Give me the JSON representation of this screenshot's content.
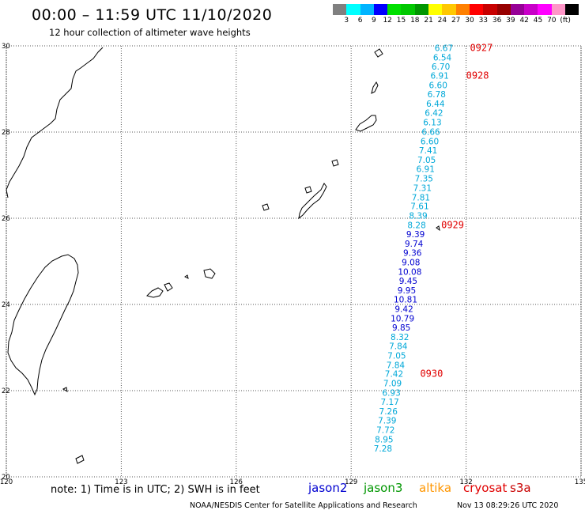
{
  "header": {
    "title": "00:00 – 11:59 UTC 11/10/2020",
    "subtitle": "12 hour collection of altimeter wave heights"
  },
  "legend": {
    "colors": [
      "#808080",
      "#00ffff",
      "#00b4ff",
      "#0000ff",
      "#00e000",
      "#00c800",
      "#009600",
      "#ffff00",
      "#ffc800",
      "#ff8000",
      "#ff0000",
      "#c80000",
      "#960000",
      "#960096",
      "#c800c8",
      "#ff00ff",
      "#ff96c8",
      "#000000"
    ],
    "labels": [
      "3",
      "6",
      "9",
      "12",
      "15",
      "18",
      "21",
      "24",
      "27",
      "30",
      "33",
      "36",
      "39",
      "42",
      "45",
      "70",
      "(ft)"
    ]
  },
  "map": {
    "lon_range": [
      120,
      135
    ],
    "lat_range": [
      20,
      30
    ],
    "lon_ticks": [
      "120",
      "123",
      "126",
      "129",
      "132",
      "135"
    ],
    "lat_ticks": [
      "20",
      "22",
      "24",
      "26",
      "28",
      "30"
    ],
    "grid": "dotted"
  },
  "track": {
    "colors": {
      "jason2": "#0000d0",
      "cryosat_light": "#00a8d8"
    },
    "points": [
      {
        "lat": 29.95,
        "lon": 131.42,
        "value": "6.67",
        "sat": "cryosat_light"
      },
      {
        "lat": 29.73,
        "lon": 131.38,
        "value": "6.54",
        "sat": "cryosat_light"
      },
      {
        "lat": 29.52,
        "lon": 131.34,
        "value": "6.70",
        "sat": "cryosat_light"
      },
      {
        "lat": 29.31,
        "lon": 131.31,
        "value": "6.91",
        "sat": "cryosat_light"
      },
      {
        "lat": 29.09,
        "lon": 131.27,
        "value": "6.60",
        "sat": "cryosat_light"
      },
      {
        "lat": 28.88,
        "lon": 131.23,
        "value": "6.78",
        "sat": "cryosat_light"
      },
      {
        "lat": 28.66,
        "lon": 131.2,
        "value": "6.44",
        "sat": "cryosat_light"
      },
      {
        "lat": 28.45,
        "lon": 131.16,
        "value": "6.42",
        "sat": "cryosat_light"
      },
      {
        "lat": 28.23,
        "lon": 131.12,
        "value": "6.13",
        "sat": "cryosat_light"
      },
      {
        "lat": 28.01,
        "lon": 131.08,
        "value": "6.66",
        "sat": "cryosat_light"
      },
      {
        "lat": 27.79,
        "lon": 131.05,
        "value": "6.60",
        "sat": "cryosat_light"
      },
      {
        "lat": 27.58,
        "lon": 131.01,
        "value": "7.41",
        "sat": "cryosat_light"
      },
      {
        "lat": 27.36,
        "lon": 130.97,
        "value": "7.05",
        "sat": "cryosat_light"
      },
      {
        "lat": 27.15,
        "lon": 130.94,
        "value": "6.91",
        "sat": "cryosat_light"
      },
      {
        "lat": 26.93,
        "lon": 130.9,
        "value": "7.35",
        "sat": "cryosat_light"
      },
      {
        "lat": 26.71,
        "lon": 130.86,
        "value": "7.31",
        "sat": "cryosat_light"
      },
      {
        "lat": 26.49,
        "lon": 130.82,
        "value": "7.81",
        "sat": "cryosat_light"
      },
      {
        "lat": 26.28,
        "lon": 130.79,
        "value": "7.61",
        "sat": "cryosat_light"
      },
      {
        "lat": 26.06,
        "lon": 130.75,
        "value": "8.39",
        "sat": "cryosat_light"
      },
      {
        "lat": 25.84,
        "lon": 130.71,
        "value": "8.28",
        "sat": "cryosat_light"
      },
      {
        "lat": 25.63,
        "lon": 130.68,
        "value": "9.39",
        "sat": "jason2"
      },
      {
        "lat": 25.41,
        "lon": 130.64,
        "value": "9.74",
        "sat": "jason2"
      },
      {
        "lat": 25.2,
        "lon": 130.6,
        "value": "9.36",
        "sat": "jason2"
      },
      {
        "lat": 24.98,
        "lon": 130.56,
        "value": "9.08",
        "sat": "jason2"
      },
      {
        "lat": 24.76,
        "lon": 130.53,
        "value": "10.08",
        "sat": "jason2"
      },
      {
        "lat": 24.55,
        "lon": 130.49,
        "value": "9.45",
        "sat": "jason2"
      },
      {
        "lat": 24.33,
        "lon": 130.45,
        "value": "9.95",
        "sat": "jason2"
      },
      {
        "lat": 24.12,
        "lon": 130.42,
        "value": "10.81",
        "sat": "jason2"
      },
      {
        "lat": 23.9,
        "lon": 130.38,
        "value": "9.42",
        "sat": "jason2"
      },
      {
        "lat": 23.68,
        "lon": 130.34,
        "value": "10.79",
        "sat": "jason2"
      },
      {
        "lat": 23.47,
        "lon": 130.31,
        "value": "9.85",
        "sat": "jason2"
      },
      {
        "lat": 23.25,
        "lon": 130.27,
        "value": "8.32",
        "sat": "cryosat_light"
      },
      {
        "lat": 23.04,
        "lon": 130.23,
        "value": "7.84",
        "sat": "cryosat_light"
      },
      {
        "lat": 22.82,
        "lon": 130.19,
        "value": "7.05",
        "sat": "cryosat_light"
      },
      {
        "lat": 22.6,
        "lon": 130.16,
        "value": "7.84",
        "sat": "cryosat_light"
      },
      {
        "lat": 22.39,
        "lon": 130.12,
        "value": "7.42",
        "sat": "cryosat_light"
      },
      {
        "lat": 22.17,
        "lon": 130.08,
        "value": "7.09",
        "sat": "cryosat_light"
      },
      {
        "lat": 21.95,
        "lon": 130.05,
        "value": "6.93",
        "sat": "cryosat_light"
      },
      {
        "lat": 21.74,
        "lon": 130.01,
        "value": "7.17",
        "sat": "cryosat_light"
      },
      {
        "lat": 21.52,
        "lon": 129.97,
        "value": "7.26",
        "sat": "cryosat_light"
      },
      {
        "lat": 21.31,
        "lon": 129.94,
        "value": "7.39",
        "sat": "cryosat_light"
      },
      {
        "lat": 21.09,
        "lon": 129.9,
        "value": "7.72",
        "sat": "cryosat_light"
      },
      {
        "lat": 20.87,
        "lon": 129.86,
        "value": "8.95",
        "sat": "cryosat_light"
      },
      {
        "lat": 20.66,
        "lon": 129.83,
        "value": "7.28",
        "sat": "cryosat_light"
      }
    ],
    "date_labels": [
      {
        "text": "0927",
        "lat": 29.95,
        "lon": 132.1
      },
      {
        "text": "0928",
        "lat": 29.31,
        "lon": 132.0
      },
      {
        "text": "0929",
        "lat": 25.84,
        "lon": 131.35
      },
      {
        "text": "0930",
        "lat": 22.39,
        "lon": 130.8
      }
    ]
  },
  "footer": {
    "note": "note: 1) Time is in UTC; 2) SWH is in feet",
    "satellites": [
      {
        "name": "jason2",
        "color": "#0000d0"
      },
      {
        "name": "jason3",
        "color": "#009600"
      },
      {
        "name": "altika",
        "color": "#ff9600"
      },
      {
        "name": "cryosat",
        "color": "#e00000"
      },
      {
        "name": "s3a",
        "color": "#c80000"
      }
    ],
    "credit": "NOAA/NESDIS Center for Satellite Applications and Research",
    "timestamp": "Nov 13 08:29:26 UTC 2020"
  }
}
